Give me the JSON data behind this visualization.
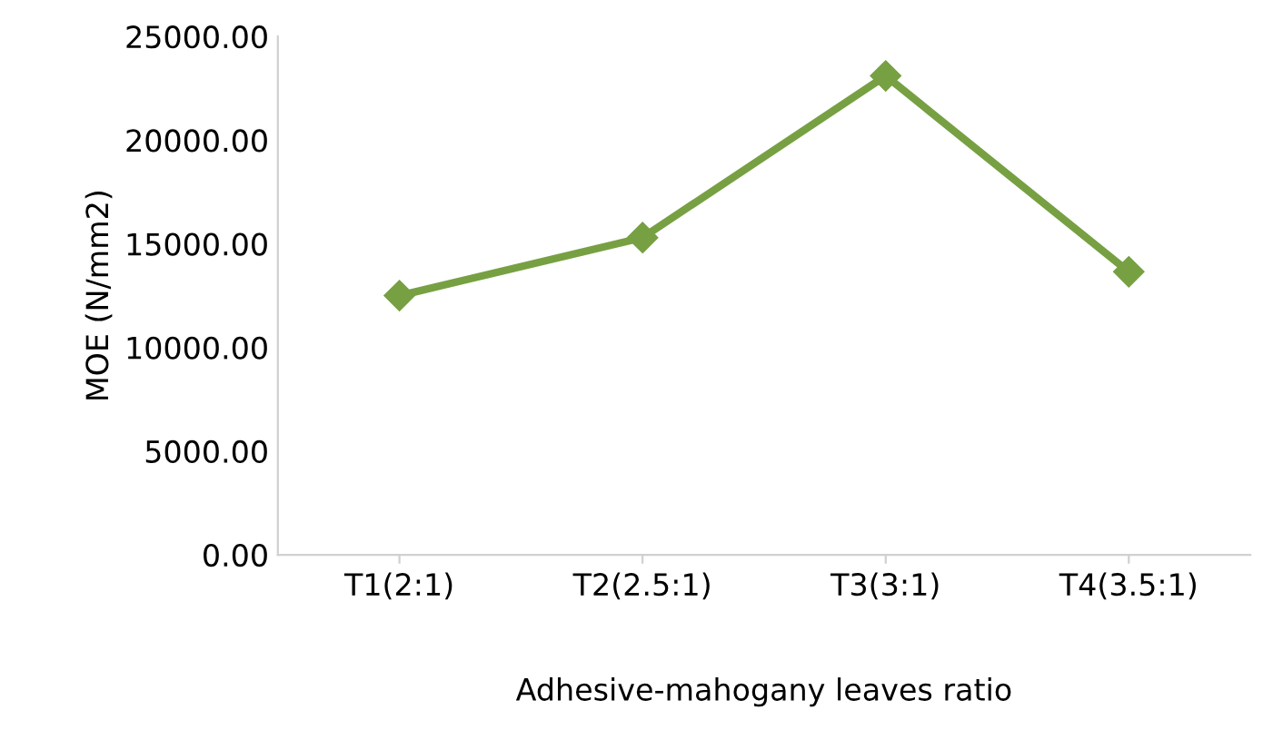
{
  "chart_data": {
    "type": "line",
    "xlabel": "Adhesive-mahogany leaves ratio",
    "ylabel": "MOE (N/mm2)",
    "categories": [
      "T1(2:1)",
      "T2(2.5:1)",
      "T3(3:1)",
      "T4(3.5:1)"
    ],
    "series": [
      {
        "color": "#77a043",
        "values": [
          12500,
          15300,
          23100,
          13650
        ]
      }
    ],
    "ylim": [
      0,
      25000
    ],
    "yticks": [
      {
        "value": 0,
        "label": "0.00"
      },
      {
        "value": 5000,
        "label": "5000.00"
      },
      {
        "value": 10000,
        "label": "10000.00"
      },
      {
        "value": 15000,
        "label": "15000.00"
      },
      {
        "value": 20000,
        "label": "20000.00"
      },
      {
        "value": 25000,
        "label": "25000.00"
      }
    ],
    "grid": false,
    "legend": false,
    "marker": "diamond",
    "line_style": "solid"
  }
}
